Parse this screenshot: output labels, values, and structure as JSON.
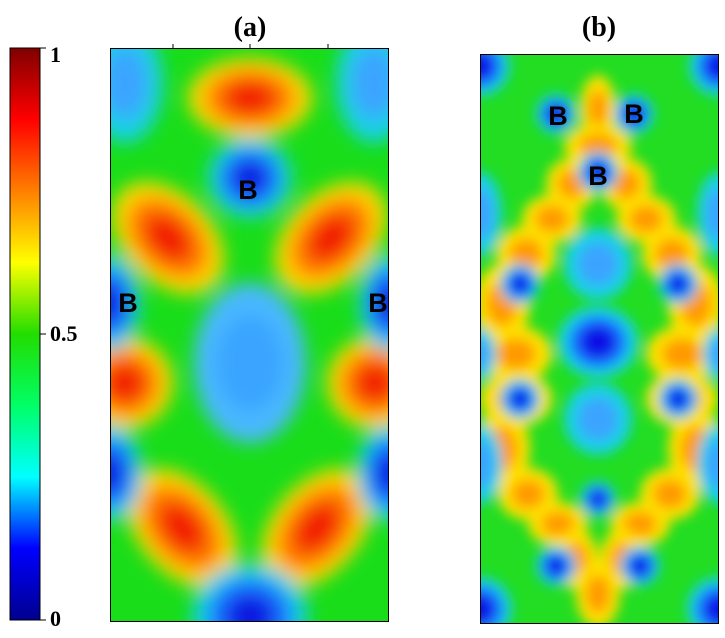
{
  "chart_data": [
    {
      "type": "heatmap",
      "panel_label": "(a)",
      "colormap": "jet",
      "value_range": [
        0,
        1
      ],
      "atom_markers": [
        "B",
        "B",
        "B"
      ]
    },
    {
      "type": "heatmap",
      "panel_label": "(b)",
      "colormap": "jet",
      "value_range": [
        0,
        1
      ],
      "atom_markers": [
        "B",
        "B",
        "B"
      ]
    }
  ],
  "colorbar": {
    "ticks": [
      "1",
      "0.5",
      "0"
    ],
    "tick_values": [
      1,
      0.5,
      0
    ],
    "colors": [
      "#00008f",
      "#0000ff",
      "#00ffff",
      "#00ff66",
      "#22dd00",
      "#ffff00",
      "#ff7f00",
      "#ff0000",
      "#800000"
    ]
  }
}
